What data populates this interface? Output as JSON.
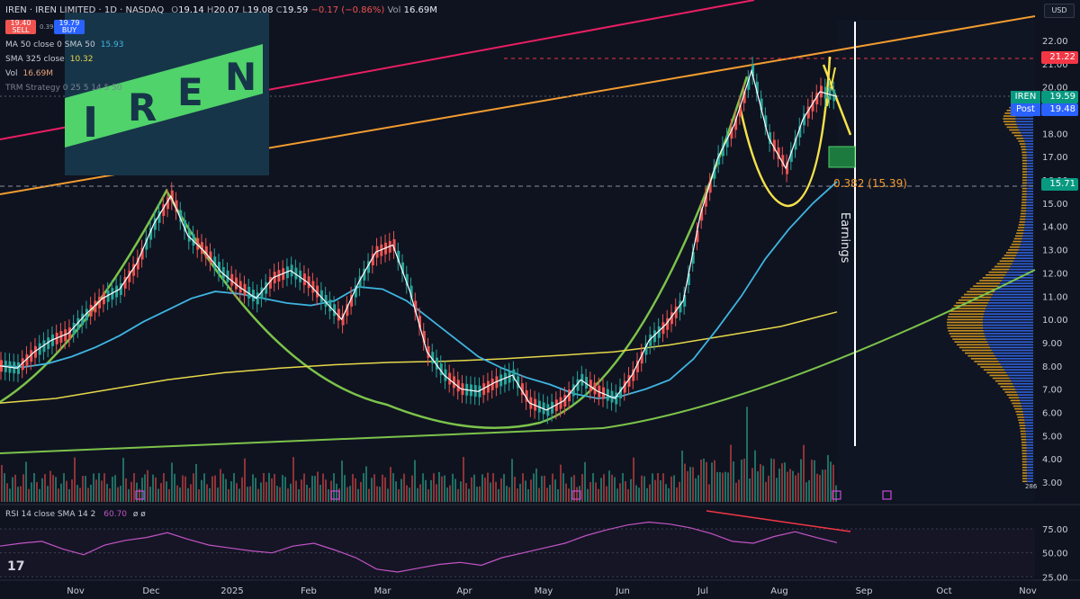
{
  "header": {
    "symbol_full": "IREN · IREN LIMITED · 1D · NASDAQ",
    "ohlc": {
      "o_label": "O",
      "o": "19.14",
      "h_label": "H",
      "h": "20.07",
      "l_label": "L",
      "l": "19.08",
      "c_label": "C",
      "c": "19.59",
      "change": "−0.17 (−0.86%)",
      "vol_label": "Vol",
      "vol": "16.69M"
    },
    "sell_price": "19.40",
    "sell_label": "SELL",
    "spread": "0.39",
    "buy_price": "19.79",
    "buy_label": "BUY"
  },
  "indicators": [
    {
      "label": "MA 50 close 0 SMA 50",
      "value": "15.93",
      "color": "#3fb5e0"
    },
    {
      "label": "SMA 325 close",
      "value": "10.32",
      "color": "#e6d84a"
    },
    {
      "label": "Vol",
      "value": "16.69M",
      "color": "#c7cbd3"
    },
    {
      "label": "TRM Strategy 0 25 5 14 5 50",
      "value": "",
      "color": "#7b8090"
    }
  ],
  "logo": {
    "text": "IREN",
    "letters": [
      "I",
      "R",
      "E",
      "N"
    ]
  },
  "annotations": {
    "earnings": "Earnings",
    "fib": "0.382 (15.39)",
    "currency": "USD"
  },
  "price_tags": [
    {
      "label": "",
      "value": "21.22",
      "color": "#f23645"
    },
    {
      "label": "IREN",
      "value": "19.59",
      "color": "#089981"
    },
    {
      "label": "Post",
      "value": "19.48",
      "color": "#2962ff"
    },
    {
      "label": "",
      "value": "15.71",
      "color": "#089981"
    }
  ],
  "rsi_label": "RSI 14 close SMA 14 2",
  "rsi_value": "60.70",
  "rsi_tail": "ø ø",
  "volume_tag": "286",
  "tv_logo": "17",
  "colors": {
    "bg": "#0f1320",
    "up": "#26a69a",
    "down": "#ef5350",
    "ma50": "#3fb5e0",
    "sma325": "#e6d84a",
    "trend_orange": "#f39c2f",
    "trend_pink": "#e91e63",
    "cup": "#7cc34a",
    "handle": "#f5e14a",
    "rsi": "#c254c4"
  },
  "chart_data": {
    "type": "line",
    "title": "IREN LIMITED · 1D · NASDAQ",
    "x_labels": [
      "Nov",
      "Dec",
      "2025",
      "Feb",
      "Mar",
      "Apr",
      "May",
      "Jun",
      "Jul",
      "Aug",
      "Sep",
      "Oct",
      "Nov"
    ],
    "y_ticks": [
      "22.00",
      "21.00",
      "20.00",
      "19.00",
      "18.00",
      "17.00",
      "16.00",
      "15.00",
      "14.00",
      "13.00",
      "12.00",
      "11.00",
      "10.00",
      "9.00",
      "8.00",
      "7.00",
      "6.00",
      "5.00",
      "4.00",
      "3.00"
    ],
    "rsi_ticks": [
      "75.00",
      "50.00",
      "25.00"
    ],
    "ylim": [
      3,
      22.5
    ],
    "series": [
      {
        "name": "Price",
        "values": [
          8.0,
          7.9,
          8.6,
          9.1,
          9.4,
          10.2,
          10.9,
          11.3,
          12.4,
          14.1,
          15.3,
          13.6,
          12.9,
          12.0,
          11.4,
          10.9,
          11.8,
          12.1,
          11.6,
          10.8,
          10.0,
          11.6,
          12.9,
          13.2,
          11.2,
          8.6,
          7.6,
          7.0,
          6.9,
          7.3,
          7.6,
          6.4,
          6.1,
          6.5,
          7.4,
          6.9,
          6.6,
          7.6,
          9.1,
          9.8,
          10.8,
          14.5,
          16.9,
          18.4,
          20.7,
          17.8,
          16.5,
          18.6,
          19.8,
          19.59
        ]
      },
      {
        "name": "MA 50",
        "values": [
          8.0,
          7.95,
          8.1,
          8.4,
          8.8,
          9.3,
          9.9,
          10.4,
          10.9,
          11.2,
          11.1,
          10.9,
          10.7,
          10.6,
          10.8,
          11.4,
          11.3,
          10.8,
          10.0,
          9.2,
          8.4,
          7.9,
          7.5,
          7.2,
          6.8,
          6.6,
          6.7,
          7.0,
          7.4,
          8.3,
          9.6,
          11.0,
          12.6,
          13.9,
          15.0,
          15.93
        ]
      },
      {
        "name": "SMA 325",
        "values": [
          6.4,
          6.6,
          7.0,
          7.4,
          7.7,
          7.9,
          8.05,
          8.15,
          8.2,
          8.3,
          8.45,
          8.6,
          8.9,
          9.3,
          9.7,
          10.32
        ]
      }
    ],
    "cup_trendline": {
      "left": [
        15.5,
        11.0,
        7.9,
        6.5,
        5.5
      ],
      "right": [
        5.7,
        6.3,
        7.9,
        11.5,
        17.3
      ]
    },
    "fib_level": {
      "label": "0.382",
      "value": 15.39
    },
    "rsi": [
      57,
      60,
      62,
      54,
      48,
      58,
      63,
      66,
      71,
      64,
      58,
      55,
      52,
      50,
      57,
      60,
      53,
      45,
      33,
      30,
      34,
      38,
      40,
      37,
      45,
      50,
      55,
      60,
      68,
      74,
      79,
      82,
      80,
      76,
      70,
      62,
      60,
      67,
      72,
      66,
      60.7
    ]
  }
}
